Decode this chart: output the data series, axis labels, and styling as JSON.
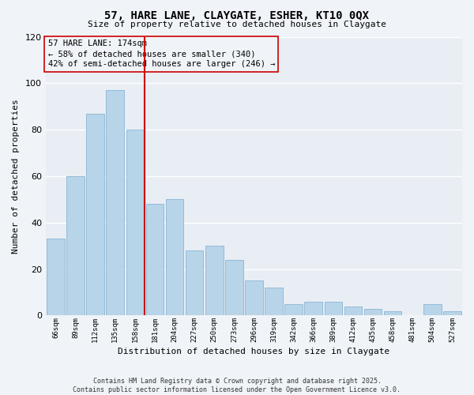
{
  "title": "57, HARE LANE, CLAYGATE, ESHER, KT10 0QX",
  "subtitle": "Size of property relative to detached houses in Claygate",
  "xlabel": "Distribution of detached houses by size in Claygate",
  "ylabel": "Number of detached properties",
  "categories": [
    "66sqm",
    "89sqm",
    "112sqm",
    "135sqm",
    "158sqm",
    "181sqm",
    "204sqm",
    "227sqm",
    "250sqm",
    "273sqm",
    "296sqm",
    "319sqm",
    "342sqm",
    "366sqm",
    "389sqm",
    "412sqm",
    "435sqm",
    "458sqm",
    "481sqm",
    "504sqm",
    "527sqm"
  ],
  "values": [
    33,
    60,
    87,
    97,
    80,
    48,
    50,
    28,
    30,
    24,
    15,
    12,
    5,
    6,
    6,
    4,
    3,
    2,
    0,
    5,
    2
  ],
  "bar_color": "#b8d4e8",
  "bar_edge_color": "#8ab4d4",
  "vline_x_index": 5,
  "vline_color": "#cc0000",
  "ylim": [
    0,
    120
  ],
  "yticks": [
    0,
    20,
    40,
    60,
    80,
    100,
    120
  ],
  "annotation_title": "57 HARE LANE: 174sqm",
  "annotation_line1": "← 58% of detached houses are smaller (340)",
  "annotation_line2": "42% of semi-detached houses are larger (246) →",
  "footer_line1": "Contains HM Land Registry data © Crown copyright and database right 2025.",
  "footer_line2": "Contains public sector information licensed under the Open Government Licence v3.0.",
  "background_color": "#f0f4f8",
  "plot_bg_color": "#e8eef4",
  "grid_color": "#ffffff"
}
